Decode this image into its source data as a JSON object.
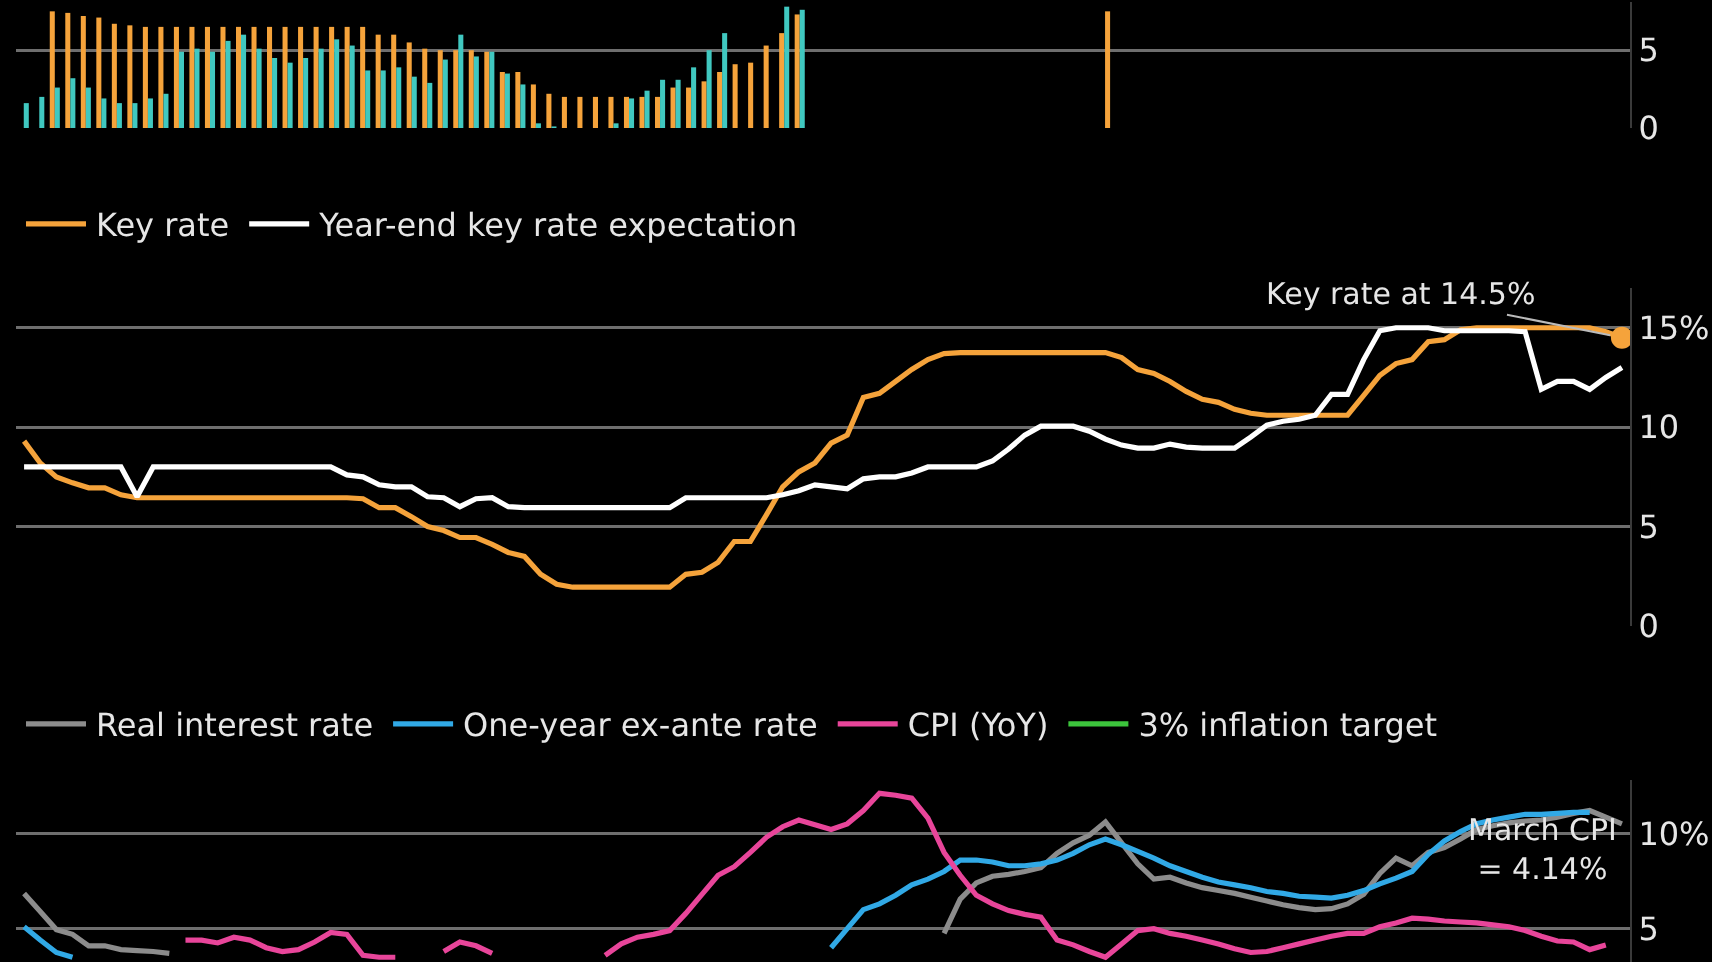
{
  "chart_data": [
    {
      "type": "bar",
      "categories": [
        null,
        null,
        null,
        null,
        null,
        null,
        null,
        null,
        null,
        null,
        null,
        null,
        null,
        null,
        null,
        null,
        null,
        null,
        null,
        null,
        null,
        null,
        null,
        null,
        null,
        null,
        null,
        null,
        null,
        null,
        null,
        null,
        null,
        null,
        null,
        null,
        null,
        null,
        null,
        null,
        null,
        null,
        null,
        null,
        null,
        null,
        null,
        null,
        null,
        null,
        null,
        null,
        null,
        null,
        null,
        null,
        null,
        null,
        null,
        null,
        null,
        null,
        null,
        null,
        null,
        null,
        null,
        null,
        null,
        null,
        null,
        null,
        null,
        null,
        null,
        null,
        null,
        null,
        null,
        null,
        null,
        null,
        null,
        null,
        null,
        null,
        null,
        null,
        null,
        null,
        null,
        null,
        null,
        null,
        null,
        null,
        null,
        null,
        null,
        null,
        null,
        null,
        null,
        null
      ],
      "series": [
        {
          "color": "#f5a33b",
          "values": [
            null,
            null,
            7.5,
            7.4,
            7.2,
            7.1,
            6.7,
            6.6,
            6.5,
            6.5,
            6.5,
            6.5,
            6.5,
            6.5,
            6.5,
            6.5,
            6.5,
            6.5,
            6.5,
            6.5,
            6.5,
            6.5,
            6.5,
            6.0,
            6.0,
            5.5,
            5.1,
            5.0,
            5.0,
            5.0,
            4.9,
            3.6,
            3.6,
            2.8,
            2.2,
            2.0,
            2.0,
            2.0,
            2.0,
            2.0,
            2.0,
            2.0,
            2.6,
            2.6,
            3.0,
            3.6,
            4.1,
            4.2,
            5.3,
            6.1,
            7.3,
            null,
            null,
            null,
            null,
            null,
            null,
            null,
            null,
            null,
            null,
            null,
            null,
            null,
            null,
            null,
            null,
            null,
            null,
            null,
            7.5,
            null,
            null,
            null,
            null,
            null,
            null,
            null,
            null,
            null,
            null,
            null,
            null,
            null,
            null,
            null,
            null,
            null,
            null,
            null,
            null,
            null,
            null,
            null,
            null,
            null,
            null,
            null,
            null,
            null,
            null,
            null,
            null,
            null
          ]
        },
        {
          "color": "#40c8c0",
          "values": [
            1.6,
            2.0,
            2.6,
            3.2,
            2.6,
            1.9,
            1.6,
            1.6,
            1.9,
            2.2,
            4.9,
            5.1,
            4.9,
            5.6,
            6.0,
            5.1,
            4.5,
            4.2,
            4.5,
            5.1,
            5.7,
            5.3,
            3.7,
            3.7,
            3.9,
            3.3,
            2.9,
            4.4,
            6.0,
            4.6,
            4.9,
            3.5,
            2.8,
            0.3,
            0.1,
            0,
            0,
            0,
            0.3,
            1.9,
            2.4,
            3.1,
            3.1,
            3.9,
            5.0,
            6.1,
            null,
            null,
            null,
            7.8,
            7.6,
            null,
            null,
            null,
            null,
            null,
            null,
            null,
            null,
            null,
            null,
            null,
            null,
            null,
            null,
            null,
            null,
            null,
            null,
            null,
            null,
            null,
            null,
            null,
            null,
            null,
            null,
            null,
            null,
            null,
            null,
            null,
            null,
            null,
            null,
            null,
            null,
            null,
            null,
            null,
            null,
            null,
            null,
            null,
            null,
            null,
            null,
            null,
            null,
            null,
            null,
            null,
            null,
            null
          ]
        }
      ],
      "ylim": [
        0,
        8.1
      ],
      "yticks": [
        0,
        5
      ],
      "grid": "y",
      "tick_labels": "y"
    },
    {
      "type": "line",
      "categories": [
        null,
        null,
        null,
        null,
        null,
        null,
        null,
        null,
        null,
        null,
        null,
        null,
        null,
        null,
        null,
        null,
        null,
        null,
        null,
        null,
        null,
        null,
        null,
        null,
        null,
        null,
        null,
        null,
        null,
        null,
        null,
        null,
        null,
        null,
        null,
        null,
        null,
        null,
        null,
        null,
        null,
        null,
        null,
        null,
        null,
        null,
        null,
        null,
        null,
        null,
        null,
        null,
        null,
        null,
        null,
        null,
        null,
        null,
        null,
        null,
        null,
        null,
        null,
        null,
        null,
        null,
        null,
        null,
        null,
        null,
        null,
        null,
        null,
        null,
        null,
        null,
        null,
        null,
        null,
        null,
        null,
        null,
        null,
        null,
        null,
        null,
        null,
        null,
        null,
        null,
        null,
        null,
        null,
        null,
        null,
        null,
        null,
        null,
        null,
        null
      ],
      "series": [
        {
          "name": "Key rate",
          "color": "#f5a33b",
          "values": [
            9.3,
            8.2,
            7.5,
            7.2,
            6.95,
            6.95,
            6.6,
            6.45,
            6.45,
            6.45,
            6.45,
            6.45,
            6.45,
            6.45,
            6.45,
            6.45,
            6.45,
            6.45,
            6.45,
            6.45,
            6.45,
            6.4,
            5.95,
            5.95,
            5.5,
            5.0,
            4.8,
            4.45,
            4.45,
            4.1,
            3.7,
            3.5,
            2.6,
            2.1,
            1.95,
            1.95,
            1.95,
            1.95,
            1.95,
            1.95,
            1.95,
            2.6,
            2.7,
            3.2,
            4.25,
            4.25,
            5.6,
            7.0,
            7.75,
            8.2,
            9.2,
            9.6,
            11.5,
            11.7,
            12.3,
            12.9,
            13.4,
            13.7,
            13.75,
            13.75,
            13.75,
            13.75,
            13.75,
            13.75,
            13.75,
            13.75,
            13.75,
            13.75,
            13.5,
            12.9,
            12.7,
            12.3,
            11.8,
            11.4,
            11.25,
            10.9,
            10.7,
            10.6,
            10.6,
            10.6,
            10.6,
            10.6,
            10.6,
            11.6,
            12.6,
            13.2,
            13.4,
            14.3,
            14.4,
            14.9,
            15,
            15,
            15,
            15,
            15,
            15,
            15,
            15,
            14.8,
            14.5
          ]
        },
        {
          "name": "Year-end key rate expectation",
          "color": "#ffffff",
          "values": [
            8,
            8,
            8,
            8,
            8,
            8,
            8,
            6.5,
            8,
            8,
            8,
            8,
            8,
            8,
            8,
            8,
            8,
            8,
            8,
            8,
            7.6,
            7.5,
            7.1,
            7.0,
            7.0,
            6.5,
            6.45,
            6.0,
            6.4,
            6.45,
            6.0,
            5.95,
            5.95,
            5.95,
            5.95,
            5.95,
            5.95,
            5.95,
            5.95,
            5.95,
            5.95,
            6.45,
            6.45,
            6.45,
            6.45,
            6.45,
            6.45,
            6.6,
            6.8,
            7.1,
            7.0,
            6.9,
            7.4,
            7.5,
            7.5,
            7.7,
            8.0,
            8.0,
            8.0,
            8.0,
            8.3,
            8.9,
            9.6,
            10.05,
            10.05,
            10.05,
            9.8,
            9.4,
            9.1,
            8.95,
            8.95,
            9.15,
            9.0,
            8.95,
            8.95,
            8.95,
            9.5,
            10.1,
            10.3,
            10.4,
            10.6,
            11.65,
            11.65,
            13.4,
            14.85,
            15,
            15,
            15,
            14.85,
            14.85,
            14.85,
            14.85,
            14.85,
            14.8,
            11.9,
            12.3,
            12.3,
            11.9,
            12.5,
            13.0
          ]
        }
      ],
      "ylim": [
        0,
        17
      ],
      "yticks": [
        0,
        5,
        10,
        {
          "value": 15,
          "label": "15%"
        }
      ],
      "grid": "y",
      "legend": "top left",
      "tick_labels": "y",
      "annotations": [
        {
          "text": "Key rate at 14.5%",
          "y": 14.5
        }
      ]
    },
    {
      "type": "line",
      "categories": [
        null,
        null,
        null,
        null,
        null,
        null,
        null,
        null,
        null,
        null,
        null,
        null,
        null,
        null,
        null,
        null,
        null,
        null,
        null,
        null,
        null,
        null,
        null,
        null,
        null,
        null,
        null,
        null,
        null,
        null,
        null,
        null,
        null,
        null,
        null,
        null,
        null,
        null,
        null,
        null,
        null,
        null,
        null,
        null,
        null,
        null,
        null,
        null,
        null,
        null,
        null,
        null,
        null,
        null,
        null,
        null,
        null,
        null,
        null,
        null,
        null,
        null,
        null,
        null,
        null,
        null,
        null,
        null,
        null,
        null,
        null,
        null,
        null,
        null,
        null,
        null,
        null,
        null,
        null,
        null,
        null,
        null,
        null,
        null,
        null,
        null,
        null,
        null,
        null,
        null,
        null,
        null,
        null,
        null,
        null,
        null,
        null,
        null,
        null,
        null
      ],
      "series": [
        {
          "name": "Real interest rate",
          "color": "#8c8c8c",
          "values": [
            6.85,
            5.9,
            4.95,
            4.7,
            4.1,
            4.1,
            3.9,
            3.85,
            3.8,
            3.7,
            null,
            null,
            null,
            null,
            null,
            null,
            null,
            null,
            null,
            null,
            null,
            null,
            null,
            null,
            null,
            null,
            null,
            null,
            null,
            null,
            null,
            null,
            null,
            null,
            null,
            null,
            null,
            null,
            null,
            null,
            null,
            null,
            null,
            null,
            null,
            null,
            null,
            null,
            null,
            null,
            null,
            null,
            null,
            null,
            null,
            null,
            null,
            4.75,
            6.55,
            7.4,
            7.75,
            7.85,
            8.0,
            8.2,
            8.95,
            9.5,
            9.9,
            10.6,
            9.5,
            8.4,
            7.6,
            7.7,
            7.4,
            7.15,
            7.0,
            6.85,
            6.65,
            6.45,
            6.25,
            6.1,
            6.0,
            6.05,
            6.3,
            6.8,
            7.9,
            8.7,
            8.3,
            9.0,
            9.25,
            9.7,
            10.2,
            10.4,
            10.55,
            10.65,
            10.7,
            10.85,
            11.05,
            11.2,
            10.85,
            10.5
          ]
        },
        {
          "name": "One-year ex-ante rate",
          "color": "#31a9e6",
          "values": [
            5.1,
            4.4,
            3.75,
            3.5,
            null,
            null,
            null,
            null,
            null,
            null,
            null,
            null,
            null,
            null,
            null,
            null,
            null,
            null,
            null,
            null,
            null,
            null,
            null,
            null,
            null,
            null,
            null,
            null,
            null,
            null,
            null,
            null,
            null,
            null,
            null,
            null,
            null,
            null,
            null,
            null,
            null,
            null,
            null,
            null,
            null,
            null,
            null,
            null,
            null,
            null,
            4.0,
            5.0,
            6.0,
            6.3,
            6.75,
            7.3,
            7.6,
            8.0,
            8.6,
            8.6,
            8.5,
            8.3,
            8.3,
            8.4,
            8.6,
            8.95,
            9.4,
            9.7,
            9.4,
            9.05,
            8.7,
            8.3,
            8.0,
            7.7,
            7.45,
            7.3,
            7.15,
            6.95,
            6.85,
            6.7,
            6.65,
            6.6,
            6.75,
            7.0,
            7.35,
            7.65,
            8.0,
            8.9,
            9.6,
            10.1,
            10.5,
            10.7,
            10.85,
            11.0,
            11.0,
            11.05,
            11.1,
            11.1,
            null,
            null
          ]
        },
        {
          "name": "CPI (YoY)",
          "color": "#e8459a",
          "values": [
            null,
            null,
            null,
            null,
            null,
            null,
            null,
            null,
            null,
            null,
            4.4,
            4.4,
            4.25,
            4.55,
            4.4,
            4.0,
            3.8,
            3.9,
            4.3,
            4.8,
            4.7,
            3.6,
            3.5,
            3.5,
            null,
            null,
            3.8,
            4.3,
            4.1,
            3.7,
            null,
            null,
            null,
            null,
            null,
            null,
            3.6,
            4.2,
            4.55,
            4.7,
            4.9,
            5.8,
            6.8,
            7.8,
            8.25,
            9.0,
            9.8,
            10.35,
            10.7,
            10.45,
            10.2,
            10.5,
            11.2,
            12.1,
            12.0,
            11.85,
            10.8,
            9.0,
            7.8,
            6.75,
            6.3,
            5.95,
            5.75,
            5.6,
            4.4,
            4.15,
            3.8,
            3.5,
            4.2,
            4.9,
            5.0,
            4.75,
            4.6,
            4.4,
            4.2,
            3.95,
            3.75,
            3.8,
            4.0,
            4.2,
            4.4,
            4.6,
            4.75,
            4.75,
            5.1,
            5.3,
            5.55,
            5.5,
            5.4,
            5.35,
            5.3,
            5.2,
            5.1,
            4.9,
            4.6,
            4.35,
            4.3,
            3.9,
            4.14,
            null
          ]
        },
        {
          "name": "3% inflation target",
          "color": "#3cc43c",
          "values": [
            null,
            null,
            null,
            null,
            null,
            null,
            null,
            null,
            null,
            null,
            null,
            null,
            null,
            null,
            null,
            null,
            null,
            null,
            null,
            null,
            null,
            null,
            null,
            null,
            null,
            null,
            null,
            null,
            null,
            null,
            null,
            null,
            null,
            null,
            null,
            null,
            null,
            null,
            null,
            null,
            null,
            null,
            null,
            null,
            null,
            null,
            null,
            null,
            null,
            null,
            null,
            null,
            null,
            null,
            null,
            null,
            null,
            null,
            null,
            null,
            null,
            null,
            null,
            null,
            null,
            null,
            null,
            null,
            null,
            null,
            null,
            null,
            null,
            null,
            null,
            null,
            null,
            null,
            null,
            null,
            null,
            null,
            null,
            null,
            null,
            null,
            null,
            null,
            null,
            null,
            null,
            null,
            null,
            null,
            null,
            null,
            null,
            null,
            null,
            null
          ]
        }
      ],
      "ylim": [
        3.25,
        12.8
      ],
      "yticks": [
        5,
        {
          "value": 10,
          "label": "10%"
        }
      ],
      "grid": "y",
      "legend": "top left",
      "tick_labels": "y",
      "annotations": [
        "March CPI\n= 4.14%"
      ]
    }
  ]
}
